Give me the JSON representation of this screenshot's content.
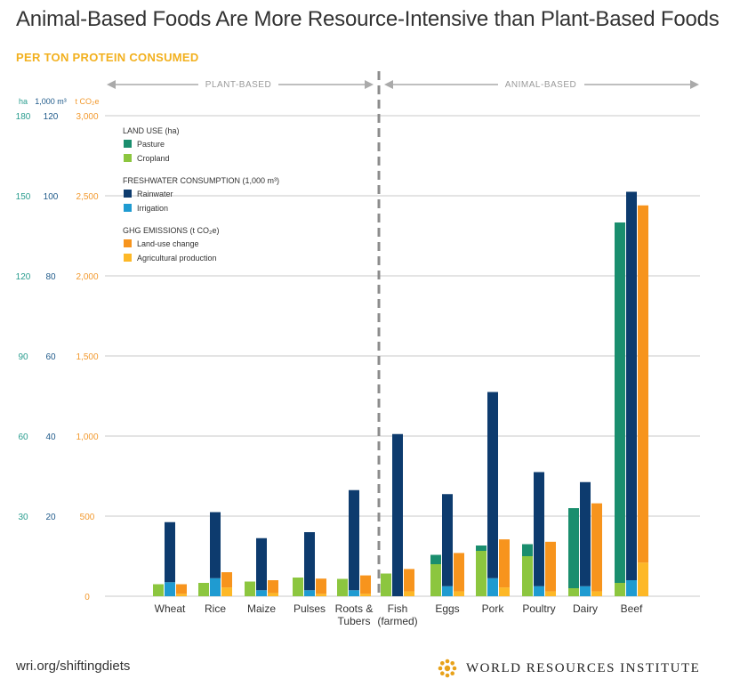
{
  "header": {
    "title": "Animal-Based Foods Are More Resource-Intensive than Plant-Based Foods",
    "subtitle": "PER TON PROTEIN CONSUMED"
  },
  "footer": {
    "url": "wri.org/shiftingdiets",
    "org": "WORLD RESOURCES INSTITUTE"
  },
  "chart_data": {
    "type": "bar",
    "title": "Animal-Based Foods Are More Resource-Intensive than Plant-Based Foods",
    "subtitle": "PER TON PROTEIN CONSUMED",
    "categories": [
      "Wheat",
      "Rice",
      "Maize",
      "Pulses",
      "Roots & Tubers",
      "Fish (farmed)",
      "Eggs",
      "Pork",
      "Poultry",
      "Dairy",
      "Beef"
    ],
    "group_labels": {
      "plant": "PLANT-BASED",
      "animal": "ANIMAL-BASED"
    },
    "plant_count": 5,
    "axes": [
      {
        "unit": "ha",
        "ticks": [
          "",
          "30",
          "60",
          "90",
          "120",
          "150",
          "180"
        ],
        "max": 180,
        "color": "#2a9d8f"
      },
      {
        "unit": "1,000 m³",
        "ticks": [
          "",
          "20",
          "40",
          "60",
          "80",
          "100",
          "120"
        ],
        "max": 120,
        "color": "#1f5a8a"
      },
      {
        "unit": "t CO₂e",
        "ticks": [
          "0",
          "500",
          "1,000",
          "1,500",
          "2,000",
          "2,500",
          "3,000"
        ],
        "max": 3000,
        "color": "#f2992e"
      }
    ],
    "legend": [
      {
        "heading": "LAND USE (ha)",
        "items": [
          {
            "name": "Pasture",
            "color": "#1a8e6e"
          },
          {
            "name": "Cropland",
            "color": "#8cc63f"
          }
        ]
      },
      {
        "heading": "FRESHWATER CONSUMPTION (1,000 m³)",
        "items": [
          {
            "name": "Rainwater",
            "color": "#0d3b6e"
          },
          {
            "name": "Irrigation",
            "color": "#1f9bd1"
          }
        ]
      },
      {
        "heading": "GHG EMISSIONS (t CO₂e)",
        "items": [
          {
            "name": "Land-use change",
            "color": "#f7941d"
          },
          {
            "name": "Agricultural production",
            "color": "#fdb827"
          }
        ]
      }
    ],
    "series": {
      "land_cropland_ha": [
        4.5,
        5.0,
        5.5,
        7.0,
        6.5,
        8.5,
        12.0,
        17.0,
        15.0,
        3.0,
        5.0
      ],
      "land_pasture_ha": [
        0,
        0,
        0,
        0,
        0,
        0,
        3.5,
        2.0,
        4.5,
        30.0,
        135.0
      ],
      "water_irrigation_1000m3": [
        3.5,
        4.5,
        1.5,
        1.5,
        1.5,
        0,
        2.5,
        4.5,
        2.5,
        2.5,
        4.0
      ],
      "water_rainwater_1000m3": [
        15.0,
        16.5,
        13.0,
        14.5,
        25.0,
        40.5,
        23.0,
        46.5,
        28.5,
        26.0,
        97.0
      ],
      "ghg_agricultural_t": [
        15,
        55,
        20,
        15,
        15,
        30,
        30,
        55,
        30,
        30,
        210
      ],
      "ghg_landuse_t": [
        60,
        95,
        80,
        95,
        115,
        140,
        240,
        300,
        310,
        550,
        2230
      ]
    }
  }
}
